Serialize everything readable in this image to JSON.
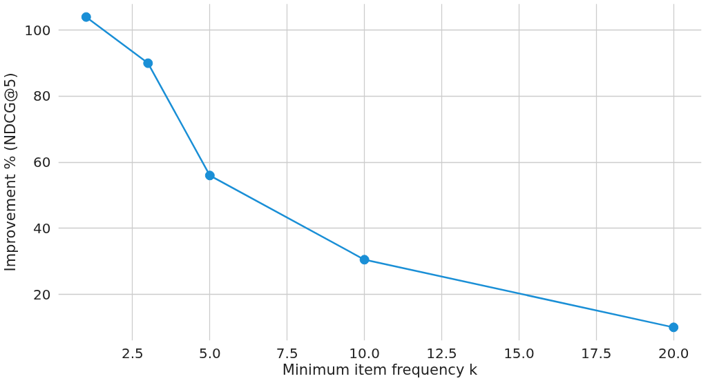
{
  "chart_data": {
    "type": "line",
    "xlabel": "Minimum item frequency k",
    "ylabel": "Improvement % (NDCG@5)",
    "x": [
      1,
      3,
      5,
      10,
      20
    ],
    "series": [
      {
        "color": "#1a8fd6",
        "values": [
          104,
          90,
          56,
          30.5,
          10
        ]
      }
    ],
    "xlim": [
      0.1,
      20.9
    ],
    "ylim": [
      6,
      108
    ],
    "xticks": [
      2.5,
      {
        "value": 5,
        "label": "5.0"
      },
      7.5,
      {
        "value": 10,
        "label": "10.0"
      },
      12.5,
      {
        "value": 15,
        "label": "15.0"
      },
      17.5,
      {
        "value": 20,
        "label": "20.0"
      }
    ],
    "yticks": [
      20,
      40,
      60,
      80,
      100
    ],
    "grid": true,
    "marker": "circle",
    "line_style": "solid"
  }
}
